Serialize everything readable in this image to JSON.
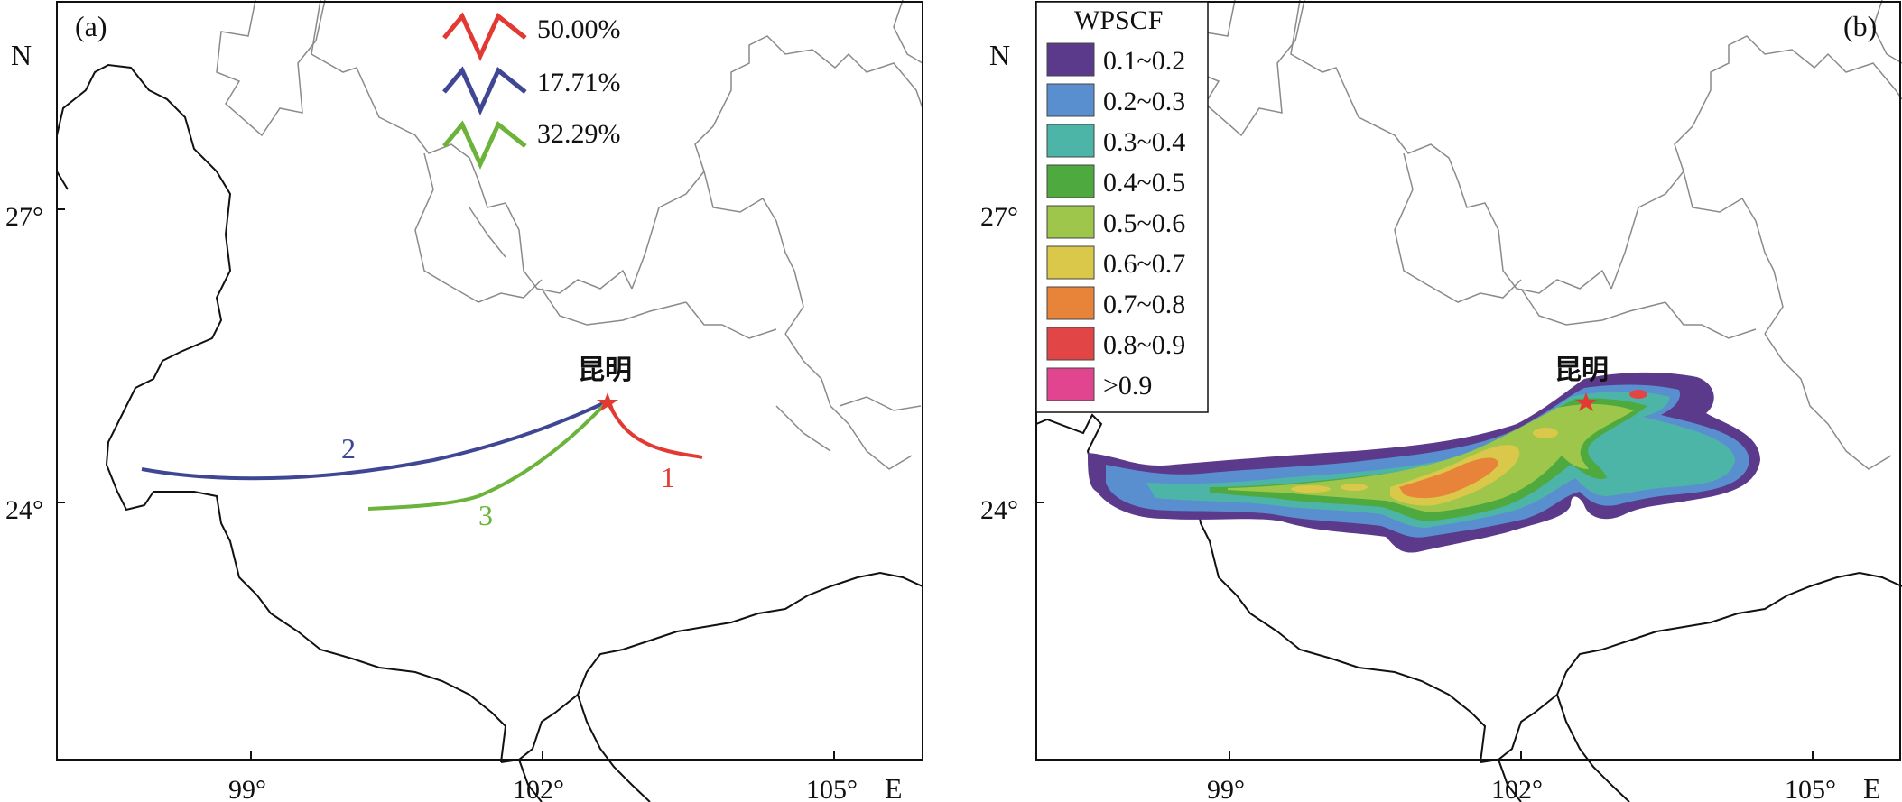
{
  "panel_a": {
    "tag": "(a)",
    "north_label": "N",
    "east_label": "E",
    "lat_ticks": [
      "27°",
      "24°"
    ],
    "lon_ticks": [
      "99°",
      "102°",
      "105°"
    ],
    "city_label": "昆明",
    "legend": [
      {
        "percent": "50.00%",
        "color": "#e23a33"
      },
      {
        "percent": "17.71%",
        "color": "#3f4794"
      },
      {
        "percent": "32.29%",
        "color": "#6bb33a"
      }
    ],
    "trajectories": [
      {
        "number": "1",
        "color": "#e23a33"
      },
      {
        "number": "2",
        "color": "#3f4794"
      },
      {
        "number": "3",
        "color": "#6bb33a"
      }
    ]
  },
  "panel_b": {
    "tag": "(b)",
    "north_label": "N",
    "east_label": "E",
    "lat_ticks": [
      "27°",
      "24°"
    ],
    "lon_ticks": [
      "99°",
      "102°",
      "105°"
    ],
    "city_label": "昆明",
    "legend_title": "WPSCF",
    "legend": [
      {
        "range": "0.1~0.2",
        "color": "#5b3a8c"
      },
      {
        "range": "0.2~0.3",
        "color": "#5a8fcf"
      },
      {
        "range": "0.3~0.4",
        "color": "#4db5a8"
      },
      {
        "range": "0.4~0.5",
        "color": "#4ea93f"
      },
      {
        "range": "0.5~0.6",
        "color": "#9ec64a"
      },
      {
        "range": "0.6~0.7",
        "color": "#d9c84a"
      },
      {
        "range": "0.7~0.8",
        "color": "#e8843a"
      },
      {
        "range": "0.8~0.9",
        "color": "#e24545"
      },
      {
        "range": ">0.9",
        "color": "#e2458f"
      }
    ]
  }
}
